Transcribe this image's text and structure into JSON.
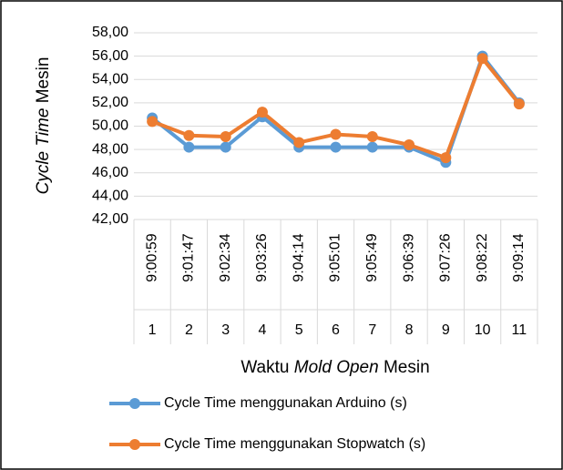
{
  "chart_data": {
    "type": "line",
    "y_label_parts": [
      "Cycle Time",
      " Mesin"
    ],
    "x_label_parts": [
      "Waktu ",
      "Mold Open",
      " Mesin"
    ],
    "categories": [
      "9:00:59",
      "9:01:47",
      "9:02:34",
      "9:03:26",
      "9:04:14",
      "9:05:01",
      "9:05:49",
      "9:06:39",
      "9:07:26",
      "9:08:22",
      "9:09:14"
    ],
    "category_groups": [
      1,
      2,
      3,
      4,
      5,
      6,
      7,
      8,
      9,
      10,
      11
    ],
    "series": [
      {
        "name": "Cycle Time menggunakan Arduino (s)",
        "color": "#5b9bd5",
        "values": [
          50.7,
          48.2,
          48.2,
          50.8,
          48.2,
          48.2,
          48.2,
          48.2,
          46.9,
          56.0,
          52.0
        ]
      },
      {
        "name": "Cycle Time menggunakan Stopwatch (s)",
        "color": "#ed7d31",
        "values": [
          50.4,
          49.2,
          49.1,
          51.2,
          48.6,
          49.3,
          49.1,
          48.4,
          47.3,
          55.8,
          51.9
        ]
      }
    ],
    "ylim": [
      42,
      58
    ],
    "yticks": [
      {
        "value": 42,
        "label": "42,00"
      },
      {
        "value": 44,
        "label": "44,00"
      },
      {
        "value": 46,
        "label": "46,00"
      },
      {
        "value": 48,
        "label": "48,00"
      },
      {
        "value": 50,
        "label": "50,00"
      },
      {
        "value": 52,
        "label": "52,00"
      },
      {
        "value": 54,
        "label": "54,00"
      },
      {
        "value": 56,
        "label": "56,00"
      },
      {
        "value": 58,
        "label": "58,00"
      }
    ],
    "grid": true,
    "legend": "bottom"
  }
}
